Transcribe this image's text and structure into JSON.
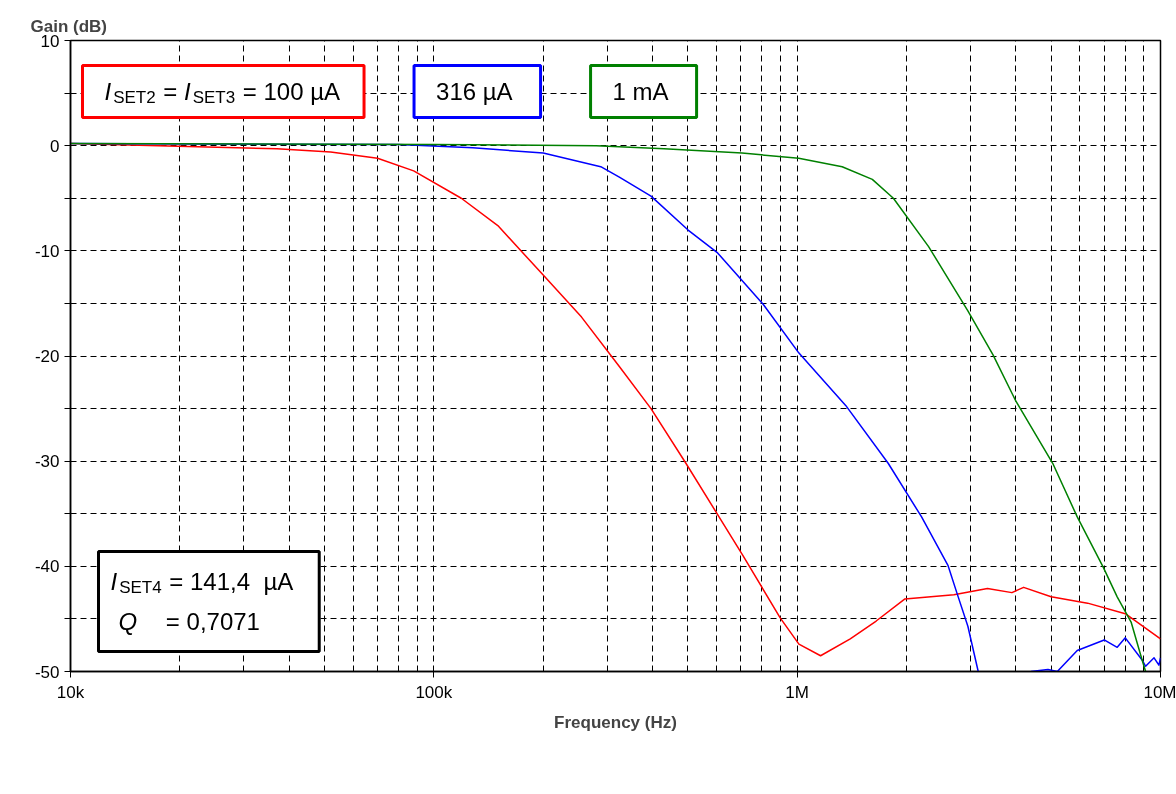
{
  "chart_data": {
    "type": "line",
    "xlabel": "Frequency (Hz)",
    "ylabel": "Gain (dB)",
    "log": "x",
    "grid": true,
    "legend": "top left",
    "line_style": "solid",
    "marker": "none",
    "xlim": [
      10000,
      10000000
    ],
    "xticks": [
      {
        "value": 10000,
        "label": "10k"
      },
      {
        "value": 100000,
        "label": "100k"
      },
      {
        "value": 1000000,
        "label": "1M"
      },
      {
        "value": 10000000,
        "label": "10M"
      }
    ],
    "ylim": [
      -50,
      10
    ],
    "yticks": [
      10,
      {
        "value": 5,
        "label": null
      },
      0,
      {
        "value": -5,
        "label": null
      },
      -10,
      {
        "value": -15,
        "label": null
      },
      -20,
      {
        "value": -25,
        "label": null
      },
      -30,
      {
        "value": -35,
        "label": null
      },
      -40,
      {
        "value": -45,
        "label": null
      },
      -50
    ],
    "series": [
      {
        "name": "I$_{SET2}$ = I$_{SET3}$ = 100 µA",
        "color": "#ff0000",
        "x": [
          10000,
          37000,
          52000,
          70000,
          88000,
          119000,
          150000,
          200000,
          255000,
          324000,
          396000,
          494000,
          710000,
          898000,
          1011000,
          1160000,
          1400000,
          1650000,
          1980000,
          2700000,
          3340000,
          3900000,
          4200000,
          5000000,
          6300000,
          8000000,
          10000000
        ],
        "values": [
          0.2,
          -0.3,
          -0.6,
          -1.2,
          -2.4,
          -5,
          -7.6,
          -12.3,
          -16.3,
          -21,
          -25,
          -30.2,
          -39,
          -44.9,
          -47.4,
          -48.5,
          -46.9,
          -45.2,
          -43.1,
          -42.7,
          -42.1,
          -42.5,
          -42,
          -42.9,
          -43.5,
          -44.5,
          -46.9
        ]
      },
      {
        "name": "316 µA",
        "color": "#0000ff",
        "x": [
          10000,
          80000,
          128000,
          200000,
          288000,
          324000,
          396000,
          500000,
          604000,
          807000,
          1010000,
          1360000,
          1780000,
          2200000,
          2600000,
          2750000,
          2950000,
          3150000,
          3700000,
          4400000,
          4900000,
          5200000,
          5900000,
          7000000,
          7600000,
          8000000,
          8900000,
          9100000,
          9600000,
          9900000,
          10000000
        ],
        "values": [
          0.2,
          0.1,
          -0.2,
          -0.7,
          -2,
          -3,
          -4.8,
          -8,
          -10.2,
          -15.1,
          -19.7,
          -24.7,
          -30.2,
          -35.3,
          -39.9,
          -42.5,
          -45.7,
          -50,
          null,
          -50,
          -49.8,
          -50,
          -48,
          -47,
          -47.7,
          -46.8,
          -48.9,
          -49.5,
          -48.7,
          -49.4,
          -48.7
        ]
      },
      {
        "name": "1 mA",
        "color": "#008000",
        "x": [
          10000,
          100000,
          280000,
          430000,
          705000,
          1010000,
          1330000,
          1610000,
          1840000,
          2300000,
          2950000,
          3460000,
          4000000,
          5050000,
          5900000,
          6960000,
          7600000,
          8300000,
          8900000,
          9100000
        ],
        "values": [
          0.2,
          0.1,
          0,
          -0.3,
          -0.7,
          -1.2,
          -2,
          -3.2,
          -5,
          -9.6,
          -15.7,
          -19.9,
          -24.3,
          -30.2,
          -35.3,
          -40.1,
          -42.9,
          -45.3,
          -48.9,
          -50
        ]
      }
    ],
    "annotations": [
      "I$_{SET4}$ = 141,4  µA",
      "Q    = 0,7071"
    ]
  }
}
